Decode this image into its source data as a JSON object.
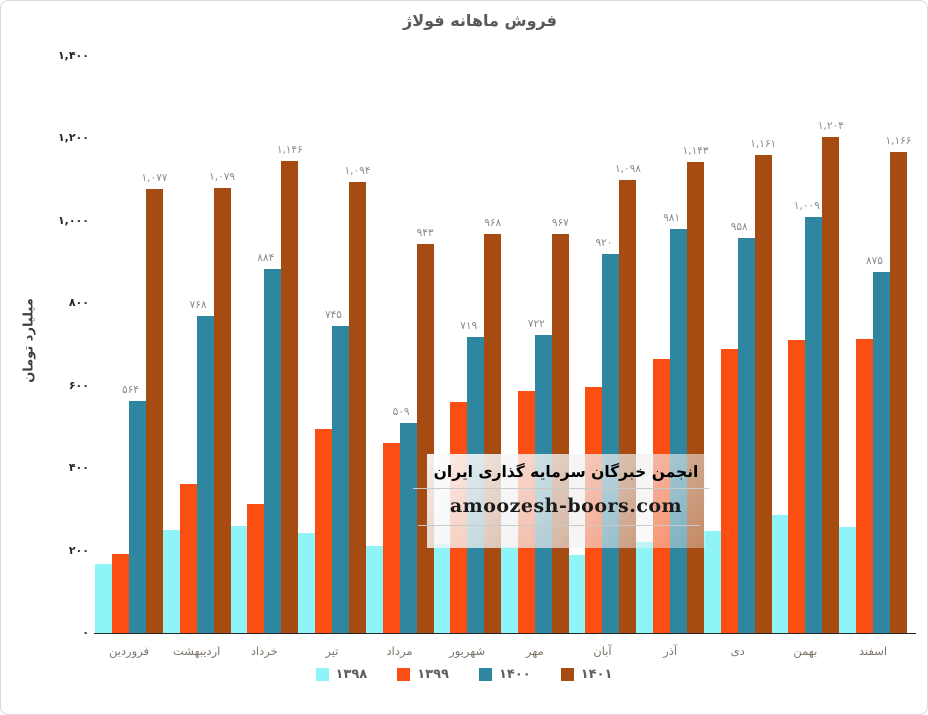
{
  "chart_data": {
    "type": "bar",
    "title": "فروش ماهانه فولاژ",
    "ylabel": "میلیارد تومان",
    "ylim": [
      0,
      1400
    ],
    "grid": false,
    "legend_position": "bottom",
    "categories": [
      "فروردین",
      "اردیبهشت",
      "خرداد",
      "تیر",
      "مرداد",
      "شهریور",
      "مهر",
      "آبان",
      "آذر",
      "دی",
      "بهمن",
      "اسفند"
    ],
    "yticks": {
      "values": [
        0,
        200,
        400,
        600,
        800,
        1000,
        1200,
        1400
      ],
      "labels": [
        "۰",
        "۲۰۰",
        "۴۰۰",
        "۶۰۰",
        "۸۰۰",
        "۱,۰۰۰",
        "۱,۲۰۰",
        "۱,۴۰۰"
      ]
    },
    "series": [
      {
        "name": "۱۳۹۸",
        "color": "#8EF4F8",
        "values": [
          168,
          250,
          260,
          243,
          210,
          216,
          208,
          190,
          222,
          248,
          287,
          258
        ],
        "labels": null
      },
      {
        "name": "۱۳۹۹",
        "color": "#FB4E12",
        "values": [
          192,
          362,
          312,
          496,
          462,
          560,
          588,
          598,
          664,
          688,
          710,
          713
        ],
        "labels": null
      },
      {
        "name": "۱۴۰۰",
        "color": "#2E86A0",
        "values": [
          564,
          768,
          884,
          745,
          509,
          719,
          722,
          920,
          981,
          958,
          1009,
          875
        ],
        "labels": [
          "۵۶۴",
          "۷۶۸",
          "۸۸۴",
          "۷۴۵",
          "۵۰۹",
          "۷۱۹",
          "۷۲۲",
          "۹۲۰",
          "۹۸۱",
          "۹۵۸",
          "۱,۰۰۹",
          "۸۷۵"
        ]
      },
      {
        "name": "۱۴۰۱",
        "color": "#A64B11",
        "values": [
          1077,
          1079,
          1146,
          1094,
          943,
          968,
          967,
          1098,
          1143,
          1161,
          1204,
          1166
        ],
        "labels": [
          "۱,۰۷۷",
          "۱,۰۷۹",
          "۱,۱۴۶",
          "۱,۰۹۴",
          "۹۴۳",
          "۹۶۸",
          "۹۶۷",
          "۱,۰۹۸",
          "۱,۱۴۳",
          "۱,۱۶۱",
          "۱,۲۰۴",
          "۱,۱۶۶"
        ]
      }
    ]
  },
  "watermark": {
    "line1": "انجمن خبرگان سرمایه گذاری ایران",
    "line2": "amoozesh-boors.com"
  },
  "colors": {
    "title_text": "#595959",
    "axis_tick_text": "#262626",
    "data_label_text": "#8A8A8A",
    "month_label_text": "#7D756B",
    "axis_line": "#262626",
    "border": "#D9D9D9"
  }
}
